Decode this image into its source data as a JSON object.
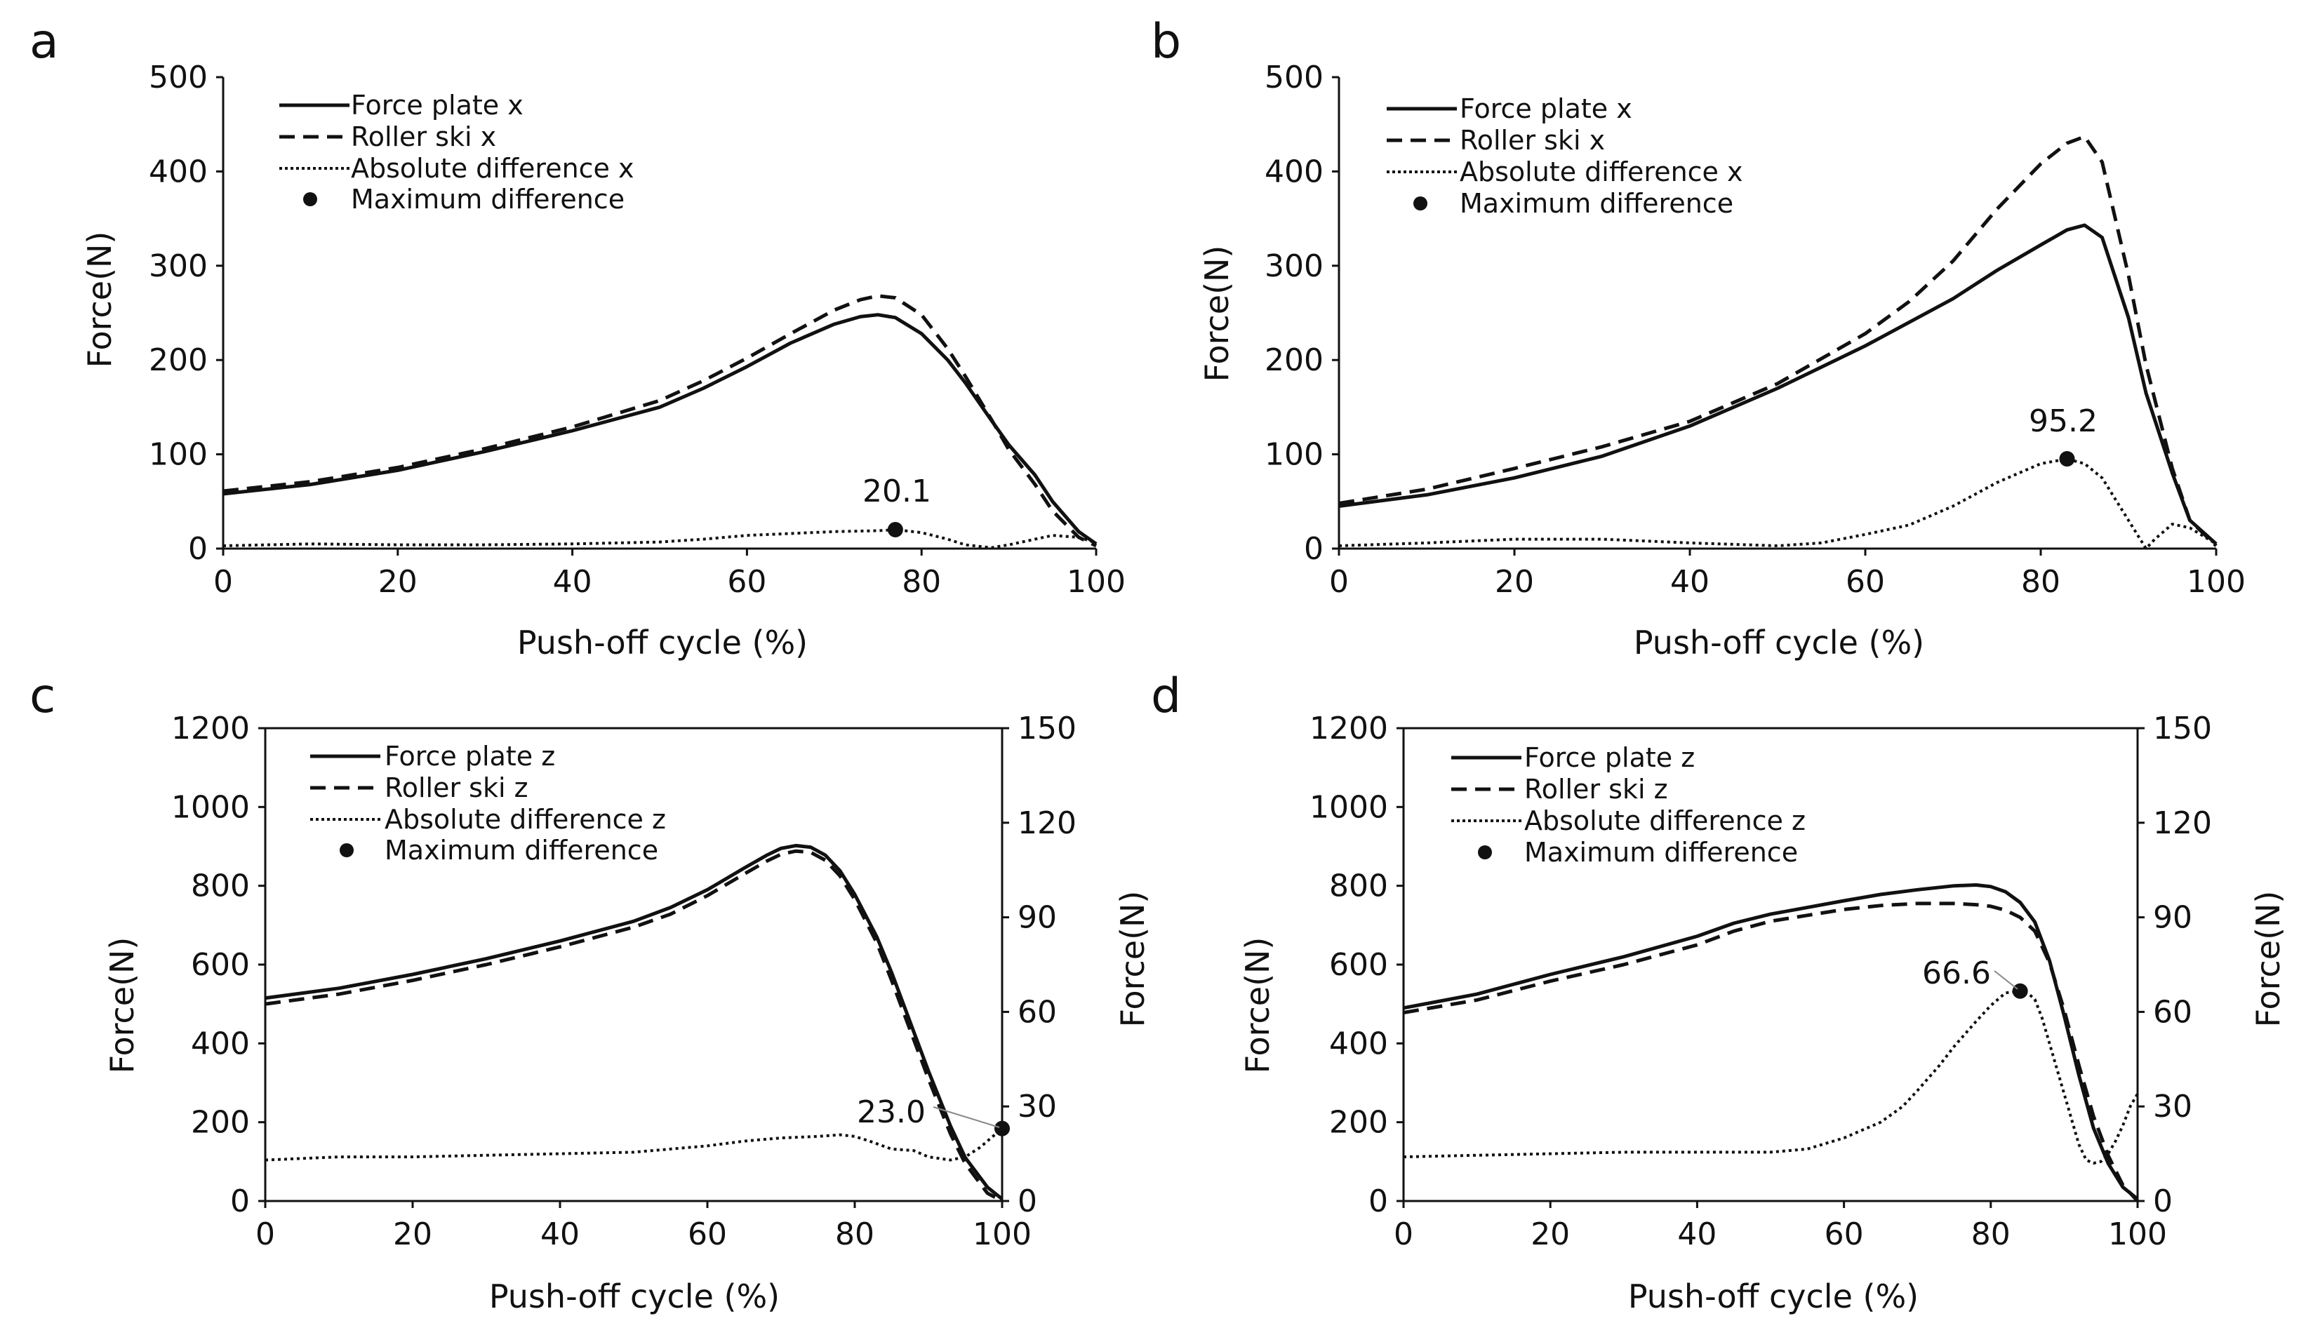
{
  "figure_labels": {
    "a": "a",
    "b": "b",
    "c": "c",
    "d": "d"
  },
  "chart_data": [
    {
      "panel": "a",
      "type": "line",
      "xlabel": "Push-off cycle (%)",
      "ylabel": "Force(N)",
      "xlim": [
        0,
        100
      ],
      "ylim": [
        0,
        500
      ],
      "xticks": [
        "0",
        "20",
        "40",
        "60",
        "80",
        "100"
      ],
      "yticks": [
        "0",
        "100",
        "200",
        "300",
        "400",
        "500"
      ],
      "legend": [
        "Force plate x",
        "Roller ski x",
        "Absolute difference x",
        "Maximum difference"
      ],
      "series": [
        {
          "name": "Force plate x",
          "style": "solid",
          "x": [
            0,
            10,
            20,
            30,
            40,
            50,
            55,
            60,
            65,
            70,
            73,
            75,
            77,
            80,
            83,
            85,
            88,
            90,
            93,
            95,
            98,
            100
          ],
          "y": [
            58,
            68,
            83,
            103,
            125,
            150,
            170,
            193,
            218,
            238,
            246,
            248,
            245,
            228,
            200,
            176,
            136,
            110,
            78,
            50,
            18,
            5
          ]
        },
        {
          "name": "Roller ski x",
          "style": "dashed",
          "x": [
            0,
            10,
            20,
            30,
            40,
            50,
            55,
            60,
            65,
            70,
            73,
            75,
            77,
            80,
            83,
            85,
            88,
            90,
            93,
            95,
            98,
            100
          ],
          "y": [
            61,
            71,
            86,
            106,
            129,
            157,
            178,
            202,
            228,
            253,
            264,
            268,
            266,
            248,
            212,
            183,
            137,
            105,
            68,
            40,
            12,
            3
          ]
        },
        {
          "name": "Absolute difference x",
          "style": "dotted",
          "x": [
            0,
            10,
            20,
            30,
            40,
            50,
            55,
            60,
            65,
            70,
            75,
            77,
            80,
            83,
            85,
            88,
            90,
            93,
            95,
            98,
            100
          ],
          "y": [
            3,
            5,
            4,
            4,
            5,
            7,
            10,
            14,
            16,
            18,
            19,
            20.1,
            17,
            10,
            4,
            1,
            4,
            10,
            14,
            12,
            6
          ]
        }
      ],
      "max_point": {
        "x": 77,
        "y": 20.1,
        "label": "20.1"
      }
    },
    {
      "panel": "b",
      "type": "line",
      "xlabel": "Push-off cycle (%)",
      "ylabel": "Force(N)",
      "xlim": [
        0,
        100
      ],
      "ylim": [
        0,
        500
      ],
      "xticks": [
        "0",
        "20",
        "40",
        "60",
        "80",
        "100"
      ],
      "yticks": [
        "0",
        "100",
        "200",
        "300",
        "400",
        "500"
      ],
      "legend": [
        "Force plate x",
        "Roller ski x",
        "Absolute difference x",
        "Maximum difference"
      ],
      "series": [
        {
          "name": "Force plate x",
          "style": "solid",
          "x": [
            0,
            10,
            20,
            30,
            40,
            50,
            60,
            65,
            70,
            75,
            80,
            83,
            85,
            87,
            90,
            92,
            95,
            97,
            100
          ],
          "y": [
            45,
            57,
            75,
            98,
            130,
            170,
            215,
            240,
            265,
            295,
            322,
            338,
            343,
            330,
            245,
            165,
            80,
            30,
            5
          ]
        },
        {
          "name": "Roller ski x",
          "style": "dashed",
          "x": [
            0,
            10,
            20,
            30,
            40,
            50,
            60,
            65,
            70,
            75,
            80,
            83,
            85,
            87,
            90,
            92,
            95,
            97,
            100
          ],
          "y": [
            48,
            63,
            85,
            108,
            135,
            175,
            228,
            262,
            305,
            360,
            408,
            430,
            437,
            410,
            290,
            195,
            85,
            30,
            3
          ]
        },
        {
          "name": "Absolute difference x",
          "style": "dotted",
          "x": [
            0,
            10,
            20,
            30,
            40,
            50,
            55,
            60,
            65,
            70,
            75,
            80,
            83,
            85,
            87,
            89,
            91,
            92,
            93,
            95,
            97,
            100
          ],
          "y": [
            3,
            6,
            10,
            10,
            6,
            3,
            6,
            15,
            25,
            45,
            70,
            90,
            95.2,
            90,
            75,
            45,
            15,
            0,
            10,
            26,
            22,
            5
          ]
        }
      ],
      "max_point": {
        "x": 83,
        "y": 95.2,
        "label": "95.2"
      }
    },
    {
      "panel": "c",
      "type": "line",
      "xlabel": "Push-off cycle (%)",
      "ylabel": "Force(N)",
      "y2label": "Force(N)",
      "xlim": [
        0,
        100
      ],
      "ylim": [
        0,
        1200
      ],
      "y2lim": [
        0,
        150
      ],
      "xticks": [
        "0",
        "20",
        "40",
        "60",
        "80",
        "100"
      ],
      "yticks": [
        "0",
        "200",
        "400",
        "600",
        "800",
        "1000",
        "1200"
      ],
      "y2ticks": [
        "0",
        "30",
        "60",
        "90",
        "120",
        "150"
      ],
      "legend": [
        "Force plate z",
        "Roller ski z",
        "Absolute difference z",
        "Maximum difference"
      ],
      "series": [
        {
          "name": "Force plate z",
          "style": "solid",
          "axis": "left",
          "x": [
            0,
            10,
            20,
            30,
            40,
            50,
            55,
            60,
            65,
            68,
            70,
            72,
            74,
            76,
            78,
            80,
            83,
            85,
            88,
            90,
            93,
            95,
            98,
            100
          ],
          "y": [
            515,
            540,
            575,
            615,
            660,
            710,
            745,
            790,
            845,
            877,
            895,
            902,
            898,
            878,
            838,
            778,
            670,
            580,
            430,
            330,
            190,
            110,
            35,
            5
          ]
        },
        {
          "name": "Roller ski z",
          "style": "dashed",
          "axis": "left",
          "x": [
            0,
            10,
            20,
            30,
            40,
            50,
            55,
            60,
            65,
            68,
            70,
            72,
            74,
            76,
            78,
            80,
            83,
            85,
            88,
            90,
            93,
            95,
            98,
            100
          ],
          "y": [
            500,
            525,
            560,
            600,
            645,
            695,
            728,
            775,
            830,
            862,
            880,
            888,
            885,
            865,
            825,
            765,
            655,
            560,
            410,
            310,
            170,
            95,
            20,
            0
          ]
        },
        {
          "name": "Absolute difference z",
          "style": "dotted",
          "axis": "right",
          "x": [
            0,
            10,
            20,
            30,
            40,
            50,
            55,
            60,
            65,
            70,
            75,
            78,
            80,
            82,
            85,
            88,
            90,
            93,
            95,
            97,
            99,
            100
          ],
          "y": [
            13,
            14,
            14,
            14.5,
            15,
            15.5,
            16.5,
            17.5,
            19,
            20,
            20.5,
            21,
            20.5,
            19,
            16.5,
            16,
            14,
            13,
            14,
            17,
            21,
            23
          ]
        }
      ],
      "max_point": {
        "x": 100,
        "y": 23.0,
        "axis": "right",
        "label": "23.0"
      }
    },
    {
      "panel": "d",
      "type": "line",
      "xlabel": "Push-off cycle (%)",
      "ylabel": "Force(N)",
      "y2label": "Force(N)",
      "xlim": [
        0,
        100
      ],
      "ylim": [
        0,
        1200
      ],
      "y2lim": [
        0,
        150
      ],
      "xticks": [
        "0",
        "20",
        "40",
        "60",
        "80",
        "100"
      ],
      "yticks": [
        "0",
        "200",
        "400",
        "600",
        "800",
        "1000",
        "1200"
      ],
      "y2ticks": [
        "0",
        "30",
        "60",
        "90",
        "120",
        "150"
      ],
      "legend": [
        "Force plate z",
        "Roller ski z",
        "Absolute difference z",
        "Maximum difference"
      ],
      "series": [
        {
          "name": "Force plate z",
          "style": "solid",
          "axis": "left",
          "x": [
            0,
            10,
            20,
            30,
            40,
            45,
            50,
            55,
            60,
            65,
            70,
            75,
            78,
            80,
            82,
            84,
            86,
            88,
            90,
            92,
            94,
            96,
            98,
            100
          ],
          "y": [
            490,
            525,
            575,
            620,
            672,
            705,
            728,
            745,
            762,
            778,
            790,
            800,
            802,
            798,
            785,
            758,
            708,
            610,
            470,
            320,
            185,
            95,
            35,
            5
          ]
        },
        {
          "name": "Roller ski z",
          "style": "dashed",
          "axis": "left",
          "x": [
            0,
            10,
            20,
            30,
            40,
            45,
            50,
            55,
            60,
            65,
            70,
            75,
            78,
            80,
            82,
            84,
            86,
            88,
            90,
            92,
            94,
            96,
            98,
            100
          ],
          "y": [
            478,
            510,
            558,
            600,
            650,
            685,
            710,
            725,
            740,
            750,
            755,
            755,
            752,
            748,
            738,
            720,
            685,
            605,
            485,
            345,
            215,
            115,
            40,
            0
          ]
        },
        {
          "name": "Absolute difference z",
          "style": "dotted",
          "axis": "right",
          "x": [
            0,
            10,
            20,
            30,
            40,
            50,
            55,
            60,
            65,
            68,
            70,
            73,
            75,
            78,
            80,
            82,
            84,
            85,
            86,
            87,
            88,
            90,
            92,
            93,
            94,
            95,
            96,
            97,
            98,
            99,
            100
          ],
          "y": [
            14,
            14.5,
            15,
            15.5,
            15.5,
            15.5,
            16.5,
            20,
            25,
            30,
            35,
            43,
            49,
            57,
            62,
            66,
            66.6,
            66,
            64,
            58,
            50,
            34,
            18,
            13,
            12,
            12.5,
            15,
            19,
            24,
            30,
            34
          ]
        }
      ],
      "max_point": {
        "x": 84,
        "y": 66.6,
        "axis": "right",
        "label": "66.6"
      }
    }
  ]
}
